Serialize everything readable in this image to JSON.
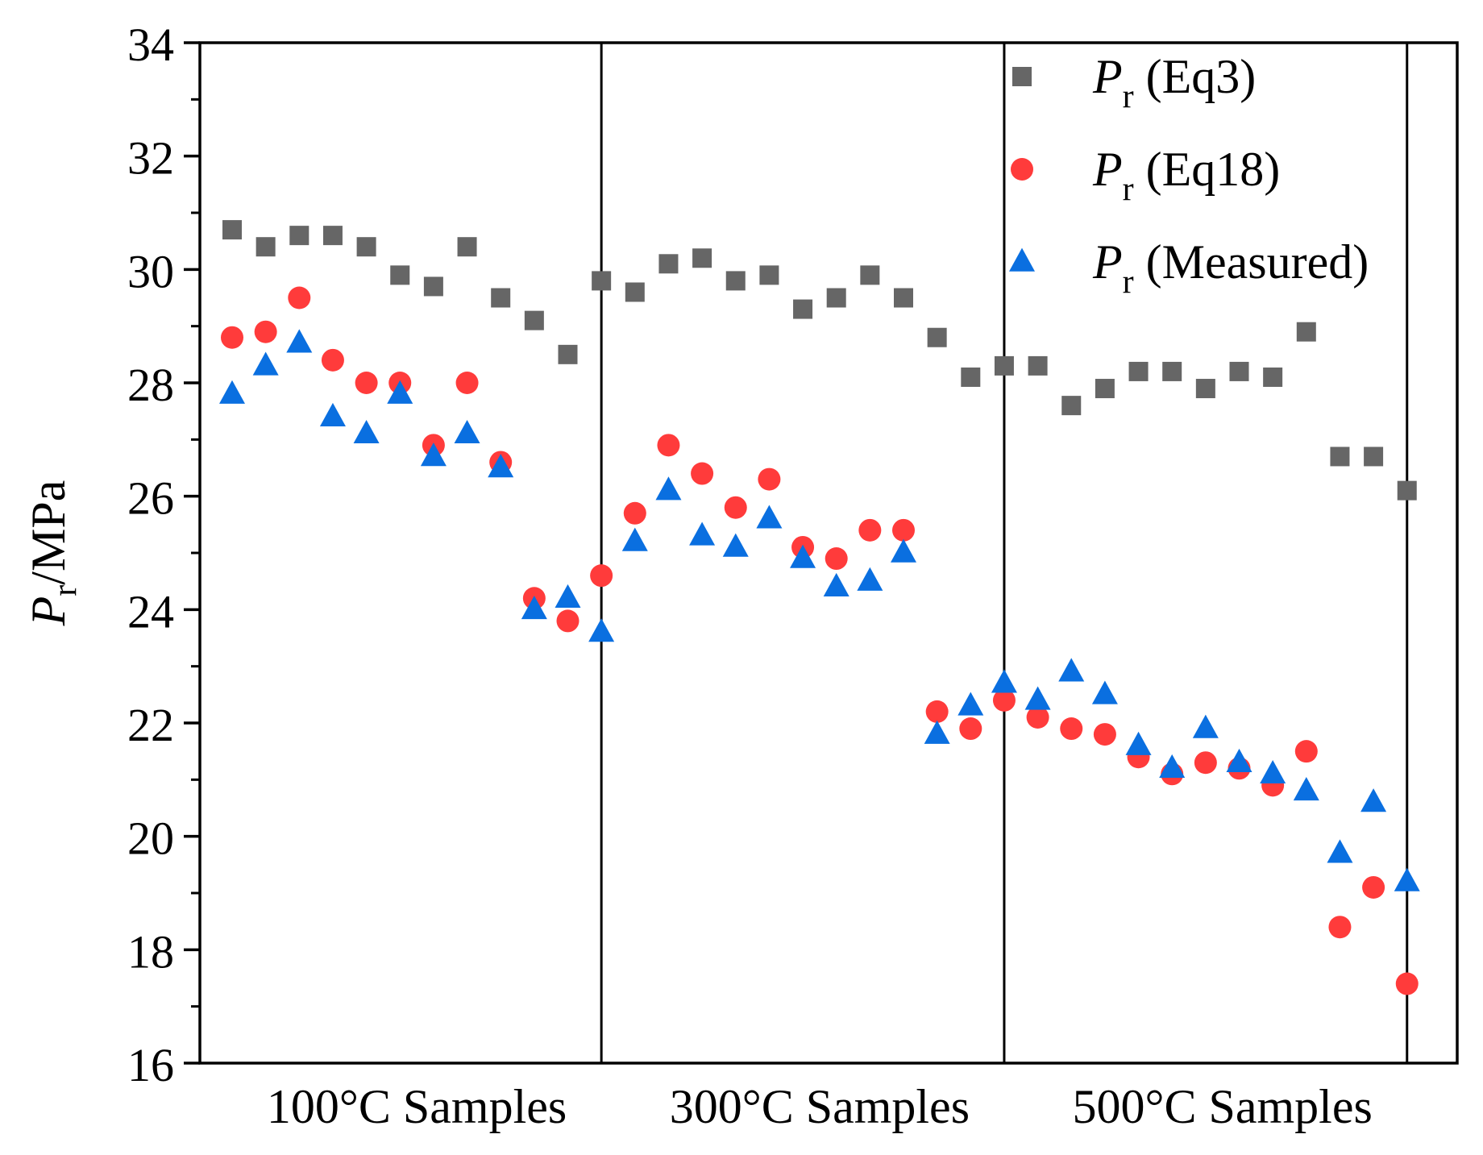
{
  "chart_data": {
    "type": "scatter",
    "title": "",
    "xlabel": "",
    "ylabel": {
      "main": "P",
      "sub": "r",
      "unit": "/MPa"
    },
    "ylim": [
      16,
      34
    ],
    "yticks": [
      16,
      18,
      20,
      22,
      24,
      26,
      28,
      30,
      32,
      34
    ],
    "x_index_range": [
      0,
      36
    ],
    "group_dividers": [
      11,
      23,
      35
    ],
    "group_labels": [
      {
        "text": "100°C Samples",
        "center": 5.5
      },
      {
        "text": "300°C Samples",
        "center": 17.5
      },
      {
        "text": "500°C Samples",
        "center": 29.5
      }
    ],
    "legend_position": "top-right",
    "series": [
      {
        "name": "Pr (Eq3)",
        "label_main": "P",
        "label_sub": "r",
        "label_rest": " (Eq3)",
        "marker": "square",
        "color": "#666666",
        "values": [
          30.7,
          30.4,
          30.6,
          30.6,
          30.4,
          29.9,
          29.7,
          30.4,
          29.5,
          29.1,
          28.5,
          29.8,
          29.6,
          30.1,
          30.2,
          29.8,
          29.9,
          29.3,
          29.5,
          29.9,
          29.5,
          28.8,
          28.1,
          28.3,
          28.3,
          27.6,
          27.9,
          28.2,
          28.2,
          27.9,
          28.2,
          28.1,
          28.9,
          26.7,
          26.7,
          26.1
        ]
      },
      {
        "name": "Pr (Eq18)",
        "label_main": "P",
        "label_sub": "r",
        "label_rest": " (Eq18)",
        "marker": "circle",
        "color": "#ff3b3b",
        "values": [
          28.8,
          28.9,
          29.5,
          28.4,
          28.0,
          28.0,
          26.9,
          28.0,
          26.6,
          24.2,
          23.8,
          24.6,
          25.7,
          26.9,
          26.4,
          25.8,
          26.3,
          25.1,
          24.9,
          25.4,
          25.4,
          22.2,
          21.9,
          22.4,
          22.1,
          21.9,
          21.8,
          21.4,
          21.1,
          21.3,
          21.2,
          20.9,
          21.5,
          18.4,
          19.1,
          17.4
        ]
      },
      {
        "name": "Pr (Measured)",
        "label_main": "P",
        "label_sub": "r",
        "label_rest": " (Measured)",
        "marker": "triangle",
        "color": "#0a6fe0",
        "values": [
          27.8,
          28.3,
          28.7,
          27.4,
          27.1,
          27.8,
          26.7,
          27.1,
          26.5,
          24.0,
          24.2,
          23.6,
          25.2,
          26.1,
          25.3,
          25.1,
          25.6,
          24.9,
          24.4,
          24.5,
          25.0,
          21.8,
          22.3,
          22.7,
          22.4,
          22.9,
          22.5,
          21.6,
          21.2,
          21.9,
          21.3,
          21.1,
          20.8,
          19.7,
          20.6,
          19.2
        ]
      }
    ]
  }
}
